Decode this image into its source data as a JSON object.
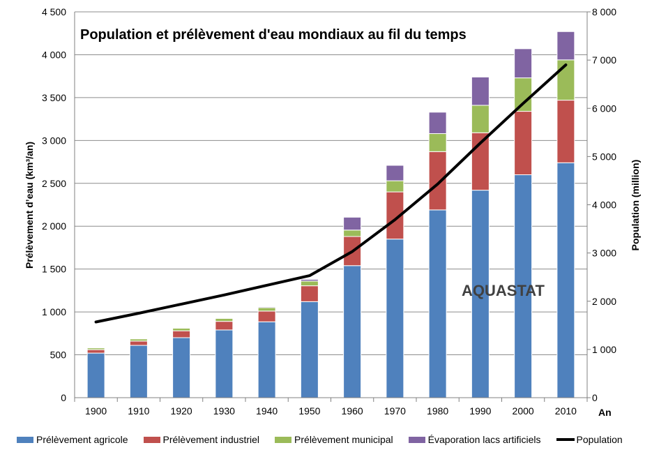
{
  "chart_data": {
    "type": "bar",
    "title": "Population et prélèvement d'eau mondiaux au fil du temps",
    "watermark": "AQUASTAT",
    "xlabel": "An",
    "ylabel_left": "Prélèvement d’eau (km³/an)",
    "ylabel_right": "Population (million)",
    "categories": [
      "1900",
      "1910",
      "1920",
      "1930",
      "1940",
      "1950",
      "1960",
      "1970",
      "1980",
      "1990",
      "2000",
      "2010"
    ],
    "left_ticks": [
      "0",
      "500",
      "1 000",
      "1 500",
      "2 000",
      "2 500",
      "3 000",
      "3 500",
      "4 000",
      "4 500"
    ],
    "right_ticks": [
      "0",
      "1 000",
      "2 000",
      "3 000",
      "4 000",
      "5 000",
      "6 000",
      "7 000",
      "8 000"
    ],
    "ylim_left": [
      0,
      4500
    ],
    "ylim_right": [
      0,
      8000
    ],
    "stacked": true,
    "grid": true,
    "legend_position": "bottom",
    "series": [
      {
        "name": "Prélèvement agricole",
        "color": "#4F81BD",
        "values": [
          520,
          610,
          700,
          790,
          885,
          1120,
          1540,
          1850,
          2190,
          2420,
          2600,
          2740
        ]
      },
      {
        "name": "Prélèvement industriel",
        "color": "#C0504D",
        "values": [
          40,
          50,
          80,
          100,
          125,
          185,
          340,
          550,
          680,
          670,
          740,
          730
        ]
      },
      {
        "name": "Prélèvement municipal",
        "color": "#9BBB59",
        "values": [
          20,
          25,
          30,
          35,
          40,
          55,
          75,
          130,
          210,
          320,
          390,
          470
        ]
      },
      {
        "name": "Évaporation lacs artificiels",
        "color": "#8064A2",
        "values": [
          0,
          0,
          0,
          5,
          10,
          20,
          150,
          180,
          250,
          330,
          340,
          330
        ]
      }
    ],
    "line_series": {
      "name": "Population",
      "color": "#000000",
      "axis": "right",
      "values": [
        1570,
        1750,
        1940,
        2130,
        2330,
        2530,
        3030,
        3690,
        4430,
        5280,
        6100,
        6900
      ]
    }
  }
}
